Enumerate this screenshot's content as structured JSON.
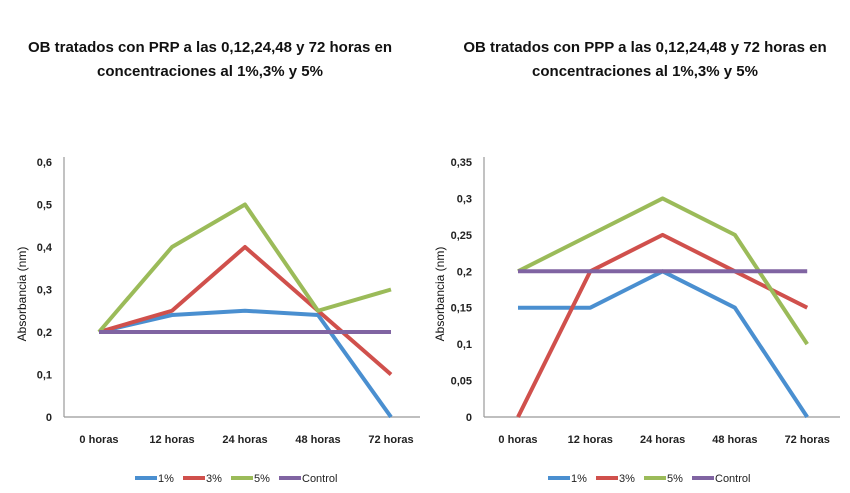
{
  "chart_data": [
    {
      "type": "line",
      "title": [
        "OB tratados con PRP a las 0,12,24,48 y 72 horas en",
        "concentraciones al 1%,3% y 5%"
      ],
      "xlabel": "",
      "ylabel": "Absorbancia (nm)",
      "categories": [
        "0 horas",
        "12 horas",
        "24 horas",
        "48 horas",
        "72 horas"
      ],
      "ylim": [
        0,
        0.6
      ],
      "yticks": [
        "0",
        "0,1",
        "0,2",
        "0,3",
        "0,4",
        "0,5",
        "0,6"
      ],
      "yticks_values": [
        0,
        0.1,
        0.2,
        0.3,
        0.4,
        0.5,
        0.6
      ],
      "grid": false,
      "legend": "bottom",
      "series": [
        {
          "name": "1%",
          "color": "#4a8fd0",
          "values": [
            0.2,
            0.24,
            0.25,
            0.24,
            0
          ]
        },
        {
          "name": "3%",
          "color": "#d0504c",
          "values": [
            0.2,
            0.25,
            0.4,
            0.25,
            0.1
          ]
        },
        {
          "name": "5%",
          "color": "#9bbb59",
          "values": [
            0.2,
            0.4,
            0.5,
            0.25,
            0.3
          ]
        },
        {
          "name": "Control",
          "color": "#8064a2",
          "values": [
            0.2,
            0.2,
            0.2,
            0.2,
            0.2
          ]
        }
      ]
    },
    {
      "type": "line",
      "title": [
        "OB tratados con PPP a las 0,12,24,48 y 72 horas en",
        "concentraciones al 1%,3% y 5%"
      ],
      "xlabel": "",
      "ylabel": "Absorbancia (nm)",
      "categories": [
        "0 horas",
        "12 horas",
        "24 horas",
        "48 horas",
        "72 horas"
      ],
      "ylim": [
        0,
        0.35
      ],
      "yticks": [
        "0",
        "0,05",
        "0,1",
        "0,15",
        "0,2",
        "0,25",
        "0,3",
        "0,35"
      ],
      "yticks_values": [
        0,
        0.05,
        0.1,
        0.15,
        0.2,
        0.25,
        0.3,
        0.35
      ],
      "grid": false,
      "legend": "bottom",
      "series": [
        {
          "name": "1%",
          "color": "#4a8fd0",
          "values": [
            0.15,
            0.15,
            0.2,
            0.15,
            0
          ]
        },
        {
          "name": "3%",
          "color": "#d0504c",
          "values": [
            0,
            0.2,
            0.25,
            0.2,
            0.15
          ]
        },
        {
          "name": "5%",
          "color": "#9bbb59",
          "values": [
            0.2,
            0.25,
            0.3,
            0.25,
            0.1
          ]
        },
        {
          "name": "Control",
          "color": "#8064a2",
          "values": [
            0.2,
            0.2,
            0.2,
            0.2,
            0.2
          ]
        }
      ]
    }
  ]
}
